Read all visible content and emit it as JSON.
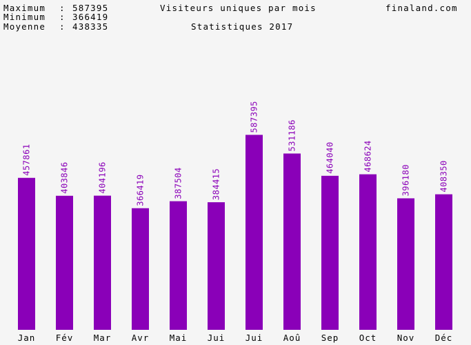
{
  "header": {
    "max_label": "Maximum",
    "max_value": "587395",
    "min_label": "Minimum",
    "min_value": "366419",
    "avg_label": "Moyenne",
    "avg_value": "438335",
    "title": "Visiteurs uniques par mois",
    "subtitle": "Statistiques 2017",
    "site": "finaland.com"
  },
  "colors": {
    "bar": "#8a00b8",
    "value_label": "#8a00b8",
    "background": "#f5f5f5",
    "text": "#000000"
  },
  "chart_data": {
    "type": "bar",
    "title": "Visiteurs uniques par mois",
    "subtitle": "Statistiques 2017",
    "categories": [
      "Jan",
      "Fév",
      "Mar",
      "Avr",
      "Mai",
      "Jui",
      "Jui",
      "Aoû",
      "Sep",
      "Oct",
      "Nov",
      "Déc"
    ],
    "values": [
      457861,
      403846,
      404196,
      366419,
      387504,
      384415,
      587395,
      531186,
      464040,
      468624,
      396180,
      408350
    ],
    "value_labels": [
      "457861",
      "403846",
      "404196",
      "366419",
      "387504",
      "384415",
      "587395",
      "531186",
      "464040",
      "468624",
      "396180",
      "408350"
    ],
    "ylim": [
      0,
      790000
    ],
    "grid": false,
    "legend": "none"
  }
}
